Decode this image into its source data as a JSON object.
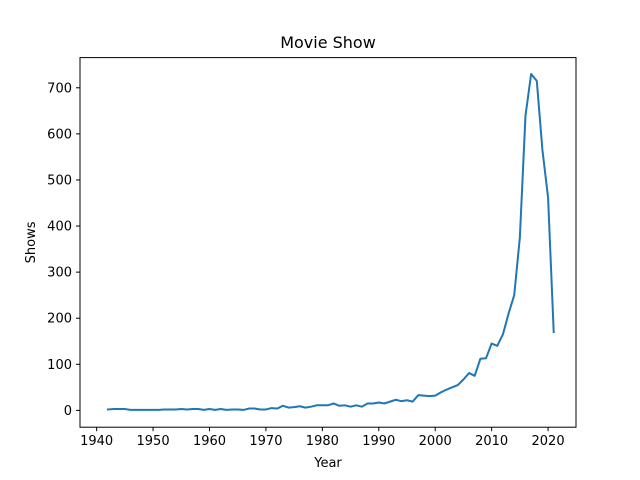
{
  "chart_data": {
    "type": "line",
    "title": "Movie Show",
    "xlabel": "Year",
    "ylabel": "Shows",
    "xlim": [
      1937.05,
      2024.95
    ],
    "ylim": [
      -36.5,
      765.5
    ],
    "xticks": [
      1940,
      1950,
      1960,
      1970,
      1980,
      1990,
      2000,
      2010,
      2020
    ],
    "yticks": [
      0,
      100,
      200,
      300,
      400,
      500,
      600,
      700
    ],
    "grid": false,
    "legend": "none",
    "series": [
      {
        "color": "#1f77b4",
        "x": [
          1942,
          1943,
          1944,
          1945,
          1946,
          1947,
          1948,
          1949,
          1950,
          1951,
          1952,
          1953,
          1954,
          1955,
          1956,
          1957,
          1958,
          1959,
          1960,
          1961,
          1962,
          1963,
          1964,
          1965,
          1966,
          1967,
          1968,
          1969,
          1970,
          1971,
          1972,
          1973,
          1974,
          1975,
          1976,
          1977,
          1978,
          1979,
          1980,
          1981,
          1982,
          1983,
          1984,
          1985,
          1986,
          1987,
          1988,
          1989,
          1990,
          1991,
          1992,
          1993,
          1994,
          1995,
          1996,
          1997,
          1998,
          1999,
          2000,
          2001,
          2002,
          2003,
          2004,
          2005,
          2006,
          2007,
          2008,
          2009,
          2010,
          2011,
          2012,
          2013,
          2014,
          2015,
          2016,
          2017,
          2018,
          2019,
          2020,
          2021
        ],
        "values": [
          2,
          3,
          3,
          3,
          1,
          1,
          1,
          1,
          1,
          1,
          2,
          2,
          2,
          3,
          2,
          3,
          3,
          1,
          3,
          1,
          3,
          1,
          2,
          2,
          1,
          4,
          4,
          2,
          2,
          5,
          4,
          10,
          6,
          7,
          9,
          6,
          8,
          11,
          11,
          11,
          15,
          10,
          11,
          8,
          11,
          8,
          15,
          15,
          17,
          15,
          19,
          23,
          20,
          22,
          19,
          33,
          32,
          31,
          32,
          39,
          45,
          50,
          55,
          67,
          81,
          75,
          112,
          113,
          145,
          140,
          165,
          210,
          250,
          375,
          640,
          730,
          715,
          565,
          462,
          170
        ]
      }
    ]
  }
}
